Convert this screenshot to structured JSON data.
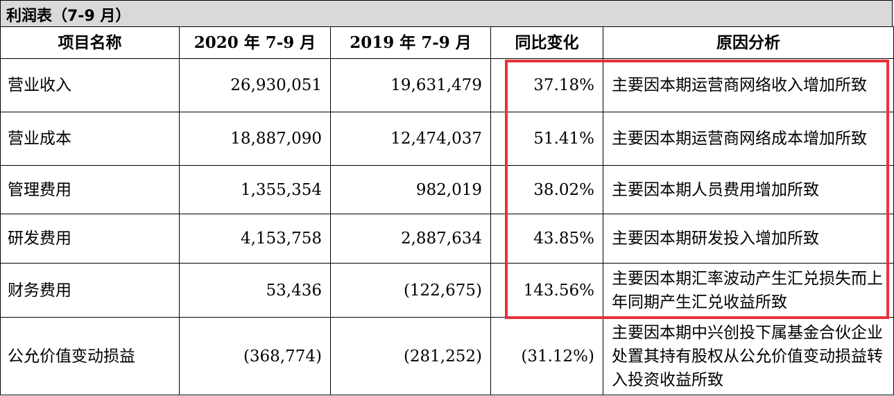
{
  "title": "利润表（7-9 月）",
  "headers": [
    "项目名称",
    "2020 年 7-9 月",
    "2019 年 7-9 月",
    "同比变化",
    "原因分析"
  ],
  "rows": [
    {
      "name": "营业收入",
      "y2020": "26,930,051",
      "y2019": "19,631,479",
      "change": "37.18%",
      "reason": "主要因本期运营商网络收入增加所致"
    },
    {
      "name": "营业成本",
      "y2020": "18,887,090",
      "y2019": "12,474,037",
      "change": "51.41%",
      "reason": "主要因本期运营商网络成本增加所致"
    },
    {
      "name": "管理费用",
      "y2020": "1,355,354",
      "y2019": "982,019",
      "change": "38.02%",
      "reason": "主要因本期人员费用增加所致"
    },
    {
      "name": "研发费用",
      "y2020": "4,153,758",
      "y2019": "2,887,634",
      "change": "43.85%",
      "reason": "主要因本期研发投入增加所致"
    },
    {
      "name": "财务费用",
      "y2020": "53,436",
      "y2019": "(122,675)",
      "change": "143.56%",
      "reason": "主要因本期汇率波动产生汇兑损失而上年同期产生汇兑收益所致"
    },
    {
      "name": "公允价值变动损益",
      "y2020": "(368,774)",
      "y2019": "(281,252)",
      "change": "(31.12%)",
      "reason": "主要因本期中兴创投下属基金合伙企业处置其持有股权从公允价值变动损益转入投资收益所致"
    }
  ],
  "colors": {
    "highlight": "#e8323c",
    "title_bg": "#d9d9d9"
  }
}
